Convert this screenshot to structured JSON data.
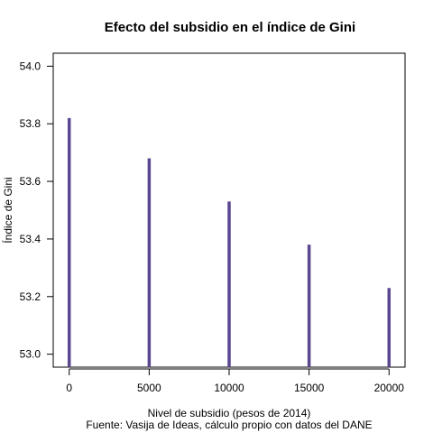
{
  "chart_data": {
    "type": "bar",
    "title": "Efecto del subsidio en el índice de Gini",
    "xlabel": "Nivel de subsidio (pesos de 2014)",
    "caption": "Fuente: Vasija de Ideas, cálculo propio con datos del DANE",
    "ylabel": "Índice de Gini",
    "x": [
      0,
      5000,
      10000,
      15000,
      20000
    ],
    "values": [
      53.82,
      53.68,
      53.53,
      53.38,
      53.23
    ],
    "xlim": [
      -1000,
      21000
    ],
    "ylim": [
      52.955,
      54.045
    ],
    "xticks": [
      0,
      5000,
      10000,
      15000,
      20000
    ],
    "xtick_labels": [
      "0",
      "5000",
      "10000",
      "15000",
      "20000"
    ],
    "yticks": [
      53.0,
      53.2,
      53.4,
      53.6,
      53.8,
      54.0
    ],
    "ytick_labels": [
      "53.0",
      "53.2",
      "53.4",
      "53.6",
      "53.8",
      "54.0"
    ],
    "series_color": "#5b4690",
    "grid": false
  }
}
